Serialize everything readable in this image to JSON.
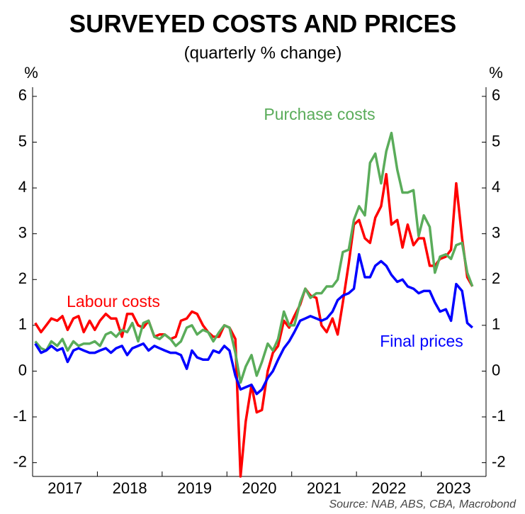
{
  "chart_data": {
    "type": "line",
    "title": "SURVEYED COSTS AND PRICES",
    "subtitle": "(quarterly % change)",
    "y_unit": "%",
    "y2_unit": "%",
    "source": "Source: NAB, ABS, CBA, Macrobond",
    "xlim": [
      2017,
      2024
    ],
    "xticks": [
      {
        "value": 2017.5,
        "label": "2017"
      },
      {
        "value": 2018.5,
        "label": "2018"
      },
      {
        "value": 2019.5,
        "label": "2019"
      },
      {
        "value": 2020.5,
        "label": "2020"
      },
      {
        "value": 2021.5,
        "label": "2021"
      },
      {
        "value": 2022.5,
        "label": "2022"
      },
      {
        "value": 2023.5,
        "label": "2023"
      }
    ],
    "ylim": [
      -2.3,
      6.2
    ],
    "yticks": [
      -2,
      -1,
      0,
      1,
      2,
      3,
      4,
      5,
      6
    ],
    "y2lim": [
      -2.3,
      6.2
    ],
    "y2ticks": [
      -2,
      -1,
      0,
      1,
      2,
      3,
      4,
      5,
      6
    ],
    "x": [
      2017.04,
      2017.13,
      2017.21,
      2017.29,
      2017.38,
      2017.46,
      2017.54,
      2017.63,
      2017.71,
      2017.79,
      2017.88,
      2017.96,
      2018.04,
      2018.13,
      2018.21,
      2018.29,
      2018.38,
      2018.46,
      2018.54,
      2018.63,
      2018.71,
      2018.79,
      2018.88,
      2018.96,
      2019.04,
      2019.13,
      2019.21,
      2019.29,
      2019.38,
      2019.46,
      2019.54,
      2019.63,
      2019.71,
      2019.79,
      2019.88,
      2019.96,
      2020.04,
      2020.13,
      2020.21,
      2020.29,
      2020.38,
      2020.46,
      2020.54,
      2020.63,
      2020.71,
      2020.79,
      2020.88,
      2020.96,
      2021.04,
      2021.13,
      2021.21,
      2021.29,
      2021.38,
      2021.46,
      2021.54,
      2021.63,
      2021.71,
      2021.79,
      2021.88,
      2021.96,
      2022.04,
      2022.13,
      2022.21,
      2022.29,
      2022.38,
      2022.46,
      2022.54,
      2022.63,
      2022.71,
      2022.79,
      2022.88,
      2022.96,
      2023.04,
      2023.13,
      2023.21,
      2023.29,
      2023.38,
      2023.46,
      2023.54,
      2023.63,
      2023.71,
      2023.79
    ],
    "series": [
      {
        "name": "Labour costs",
        "color": "#ff0000",
        "values": [
          1.05,
          0.85,
          1.0,
          1.15,
          1.1,
          1.2,
          0.9,
          1.15,
          1.2,
          0.85,
          1.1,
          0.9,
          1.1,
          1.25,
          1.15,
          1.15,
          0.75,
          1.25,
          1.25,
          1.0,
          0.95,
          1.1,
          0.75,
          0.8,
          0.8,
          0.7,
          0.75,
          1.1,
          1.15,
          1.3,
          1.25,
          1.0,
          0.85,
          0.75,
          0.75,
          1.0,
          0.95,
          0.7,
          -2.3,
          -1.1,
          -0.3,
          -0.9,
          -0.85,
          0.0,
          0.4,
          0.55,
          1.1,
          0.95,
          1.2,
          1.45,
          1.8,
          1.65,
          1.6,
          1.0,
          0.85,
          1.15,
          0.8,
          1.5,
          2.35,
          3.2,
          3.3,
          2.9,
          2.8,
          3.35,
          3.6,
          4.3,
          3.2,
          3.3,
          2.7,
          3.2,
          2.75,
          2.9,
          2.9,
          2.3,
          2.3,
          2.45,
          2.5,
          2.65,
          4.1,
          2.9,
          2.05,
          1.85
        ]
      },
      {
        "name": "Purchase costs",
        "color": "#5aac5a",
        "values": [
          0.65,
          0.5,
          0.45,
          0.65,
          0.55,
          0.7,
          0.45,
          0.65,
          0.55,
          0.6,
          0.6,
          0.65,
          0.55,
          0.8,
          0.85,
          0.75,
          0.9,
          0.85,
          1.05,
          0.65,
          1.05,
          1.1,
          0.75,
          0.7,
          0.8,
          0.7,
          0.55,
          0.65,
          0.95,
          1.0,
          0.8,
          0.9,
          0.85,
          0.65,
          0.85,
          1.0,
          0.95,
          0.4,
          -0.25,
          0.1,
          0.35,
          -0.1,
          0.2,
          0.6,
          0.45,
          0.7,
          1.3,
          1.0,
          1.0,
          1.5,
          1.8,
          1.6,
          1.7,
          1.7,
          1.85,
          1.85,
          2.0,
          2.6,
          2.65,
          3.3,
          3.6,
          3.4,
          4.55,
          4.75,
          4.1,
          4.8,
          5.2,
          4.4,
          3.9,
          3.9,
          3.95,
          2.95,
          3.4,
          3.15,
          2.15,
          2.5,
          2.55,
          2.45,
          2.75,
          2.8,
          2.15,
          1.85
        ]
      },
      {
        "name": "Final prices",
        "color": "#0000ff",
        "values": [
          0.6,
          0.4,
          0.45,
          0.55,
          0.45,
          0.5,
          0.2,
          0.45,
          0.5,
          0.45,
          0.4,
          0.4,
          0.45,
          0.5,
          0.4,
          0.5,
          0.55,
          0.35,
          0.5,
          0.55,
          0.6,
          0.45,
          0.55,
          0.5,
          0.45,
          0.4,
          0.4,
          0.35,
          0.05,
          0.45,
          0.3,
          0.25,
          0.25,
          0.45,
          0.4,
          0.55,
          0.45,
          -0.1,
          -0.4,
          -0.35,
          -0.3,
          -0.5,
          -0.4,
          -0.15,
          0.0,
          0.25,
          0.5,
          0.65,
          0.85,
          1.1,
          1.15,
          1.2,
          1.15,
          1.1,
          1.15,
          1.3,
          1.55,
          1.65,
          1.7,
          1.8,
          2.55,
          2.05,
          2.05,
          2.3,
          2.4,
          2.3,
          2.1,
          1.95,
          2.0,
          1.85,
          1.8,
          1.7,
          1.75,
          1.75,
          1.5,
          1.3,
          1.35,
          1.1,
          1.9,
          1.75,
          1.05,
          0.95
        ]
      }
    ]
  }
}
